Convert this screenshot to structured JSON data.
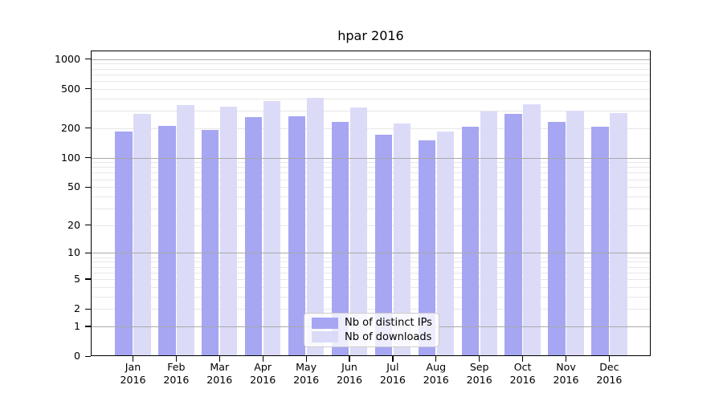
{
  "chart_data": {
    "type": "bar",
    "title": "hpar 2016",
    "categories": [
      "Jan",
      "Feb",
      "Mar",
      "Apr",
      "May",
      "Jun",
      "Jul",
      "Aug",
      "Sep",
      "Oct",
      "Nov",
      "Dec"
    ],
    "category_year": "2016",
    "series": [
      {
        "name": "Nb of distinct IPs",
        "color": "#a6a6f2",
        "values": [
          185,
          212,
          191,
          259,
          262,
          230,
          172,
          149,
          206,
          277,
          229,
          207
        ]
      },
      {
        "name": "Nb of downloads",
        "color": "#dbdbf8",
        "values": [
          280,
          344,
          331,
          373,
          405,
          321,
          222,
          184,
          296,
          351,
          300,
          286
        ]
      }
    ],
    "xlabel": "",
    "ylabel": "",
    "yscale": "log10(value+1)",
    "yticks": [
      0,
      1,
      2,
      5,
      10,
      20,
      50,
      100,
      200,
      500,
      1000
    ],
    "ylim": [
      0,
      1216
    ],
    "grid": "horizontal",
    "legend_position": "bottom-center"
  },
  "colors": {
    "bar_distinct_ips": "#a6a6f2",
    "bar_downloads": "#dbdbf8",
    "grid_major": "#a9a9a9",
    "grid_minor": "#e7e7e7",
    "axis": "#000000",
    "legend_border": "#cccccc"
  }
}
